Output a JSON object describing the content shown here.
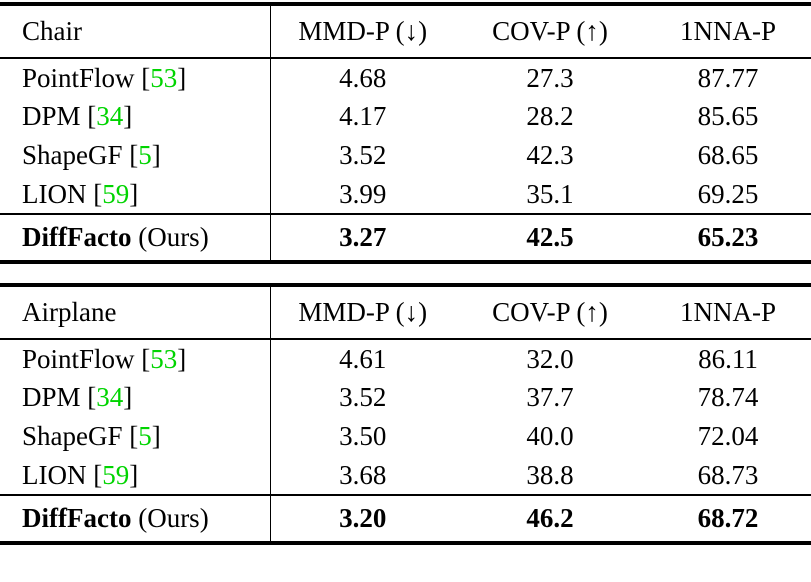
{
  "punct": {
    "cite_open": "[",
    "cite_close": "]"
  },
  "colors": {
    "cite_green": "#00d400",
    "text": "#000000"
  },
  "tables": [
    {
      "title": "Chair",
      "header": [
        "Chair",
        "MMD-P (↓)",
        "COV-P (↑)",
        "1NNA-P"
      ],
      "rows": [
        {
          "method": "PointFlow",
          "cite": "53",
          "values": [
            "4.68",
            "27.3",
            "87.77"
          ]
        },
        {
          "method": "DPM",
          "cite": "34",
          "values": [
            "4.17",
            "28.2",
            "85.65"
          ]
        },
        {
          "method": "ShapeGF",
          "cite": "5",
          "values": [
            "3.52",
            "42.3",
            "68.65"
          ]
        },
        {
          "method": "LION",
          "cite": "59",
          "values": [
            "3.99",
            "35.1",
            "69.25"
          ]
        }
      ],
      "ours": {
        "method": "DiffFacto",
        "suffix": "(Ours)",
        "values": [
          "3.27",
          "42.5",
          "65.23"
        ]
      }
    },
    {
      "title": "Airplane",
      "header": [
        "Airplane",
        "MMD-P (↓)",
        "COV-P (↑)",
        "1NNA-P"
      ],
      "rows": [
        {
          "method": "PointFlow",
          "cite": "53",
          "values": [
            "4.61",
            "32.0",
            "86.11"
          ]
        },
        {
          "method": "DPM",
          "cite": "34",
          "values": [
            "3.52",
            "37.7",
            "78.74"
          ]
        },
        {
          "method": "ShapeGF",
          "cite": "5",
          "values": [
            "3.50",
            "40.0",
            "72.04"
          ]
        },
        {
          "method": "LION",
          "cite": "59",
          "values": [
            "3.68",
            "38.8",
            "68.73"
          ]
        }
      ],
      "ours": {
        "method": "DiffFacto",
        "suffix": "(Ours)",
        "values": [
          "3.20",
          "46.2",
          "68.72"
        ]
      }
    }
  ],
  "chart_data": {
    "type": "table",
    "metrics": [
      "MMD-P (down is better)",
      "COV-P (up is better)",
      "1NNA-P"
    ],
    "categories": [
      "Chair",
      "Airplane"
    ],
    "series": [
      {
        "name": "PointFlow",
        "chair": [
          4.68,
          27.3,
          87.77
        ],
        "airplane": [
          4.61,
          32.0,
          86.11
        ]
      },
      {
        "name": "DPM",
        "chair": [
          4.17,
          28.2,
          85.65
        ],
        "airplane": [
          3.52,
          37.7,
          78.74
        ]
      },
      {
        "name": "ShapeGF",
        "chair": [
          3.52,
          42.3,
          68.65
        ],
        "airplane": [
          3.5,
          40.0,
          72.04
        ]
      },
      {
        "name": "LION",
        "chair": [
          3.99,
          35.1,
          69.25
        ],
        "airplane": [
          3.68,
          38.8,
          68.73
        ]
      },
      {
        "name": "DiffFacto (Ours)",
        "chair": [
          3.27,
          42.5,
          65.23
        ],
        "airplane": [
          3.2,
          46.2,
          68.72
        ]
      }
    ]
  }
}
